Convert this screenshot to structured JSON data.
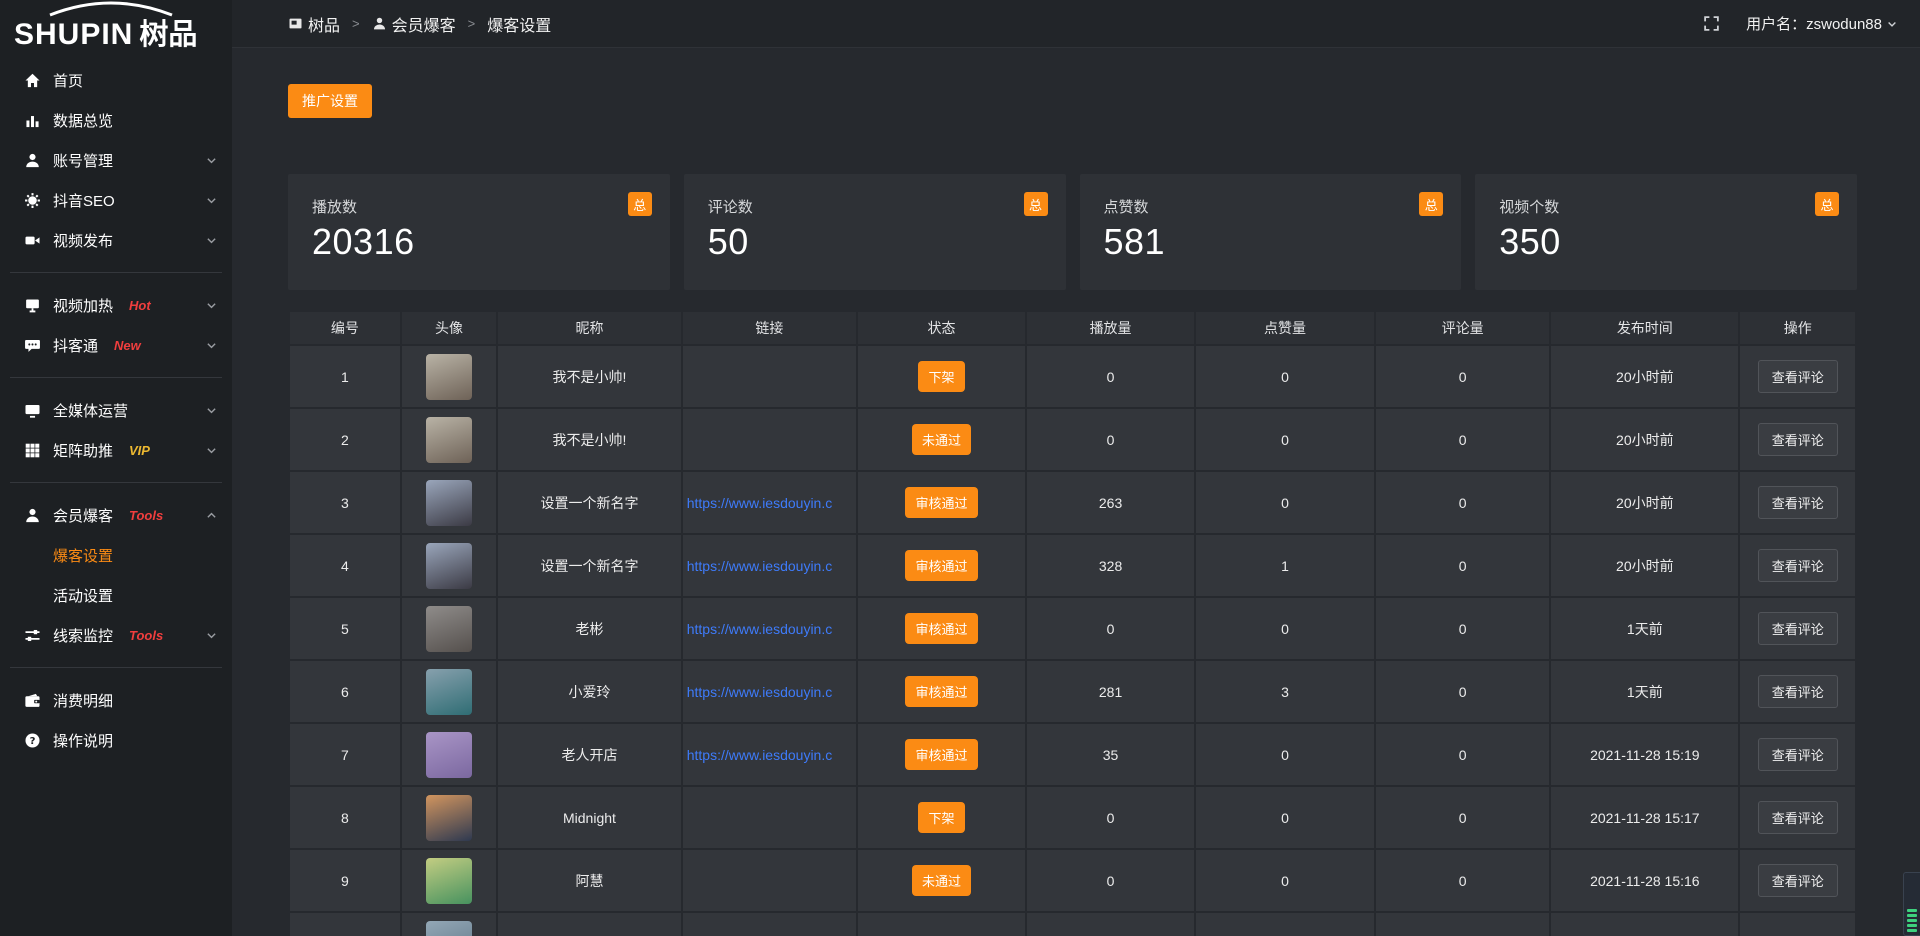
{
  "colors": {
    "accent": "#fb8b14",
    "link": "#3e7bfa",
    "badge_red": "#f03e3e",
    "badge_gold": "#edb931"
  },
  "logo": {
    "text_en": "SHUPIN",
    "text_cn": "树品"
  },
  "topbar": {
    "breadcrumb": [
      {
        "icon": "app-icon",
        "label": "树品"
      },
      {
        "icon": "user-icon",
        "label": "会员爆客"
      },
      {
        "icon": null,
        "label": "爆客设置"
      }
    ],
    "username_label": "用户名：zswodun88"
  },
  "sidebar": {
    "items": [
      {
        "icon": "home-icon",
        "label": "首页"
      },
      {
        "icon": "chart-icon",
        "label": "数据总览"
      },
      {
        "icon": "user-icon",
        "label": "账号管理",
        "chevron": "down"
      },
      {
        "icon": "gear-icon",
        "label": "抖音SEO",
        "chevron": "down"
      },
      {
        "icon": "video-icon",
        "label": "视频发布",
        "chevron": "down"
      },
      {
        "divider": true
      },
      {
        "icon": "screen-play-icon",
        "label": "视频加热",
        "badge": "Hot",
        "badge_color": "red",
        "chevron": "down"
      },
      {
        "icon": "chat-icon",
        "label": "抖客通",
        "badge": "New",
        "badge_color": "red",
        "chevron": "down"
      },
      {
        "divider": true
      },
      {
        "icon": "monitor-icon",
        "label": "全媒体运营",
        "chevron": "down"
      },
      {
        "icon": "grid-icon",
        "label": "矩阵助推",
        "badge": "VIP",
        "badge_color": "gold",
        "chevron": "down"
      },
      {
        "divider": true
      },
      {
        "icon": "member-icon",
        "label": "会员爆客",
        "badge": "Tools",
        "badge_color": "red",
        "chevron": "up"
      },
      {
        "sub": true,
        "label": "爆客设置",
        "active": true
      },
      {
        "sub": true,
        "label": "活动设置"
      },
      {
        "icon": "sliders-icon",
        "label": "线索监控",
        "badge": "Tools",
        "badge_color": "red",
        "chevron": "down"
      },
      {
        "divider": true
      },
      {
        "icon": "wallet-icon",
        "label": "消费明细"
      },
      {
        "icon": "question-icon",
        "label": "操作说明"
      }
    ]
  },
  "toolbar": {
    "promo_button": "推广设置"
  },
  "stats": {
    "badge": "总",
    "cards": [
      {
        "label": "播放数",
        "value": "20316"
      },
      {
        "label": "评论数",
        "value": "50"
      },
      {
        "label": "点赞数",
        "value": "581"
      },
      {
        "label": "视频个数",
        "value": "350"
      }
    ]
  },
  "table": {
    "columns": [
      "编号",
      "头像",
      "昵称",
      "链接",
      "状态",
      "播放量",
      "点赞量",
      "评论量",
      "发布时间",
      "操作"
    ],
    "action_label": "查看评论",
    "rows": [
      {
        "id": "1",
        "nickname": "我不是小帅!",
        "link": "",
        "status": "下架",
        "plays": "0",
        "likes": "0",
        "comments": "0",
        "time": "20小时前",
        "avatar": [
          "#b9b3a6",
          "#6e6257"
        ]
      },
      {
        "id": "2",
        "nickname": "我不是小帅!",
        "link": "",
        "status": "未通过",
        "plays": "0",
        "likes": "0",
        "comments": "0",
        "time": "20小时前",
        "avatar": [
          "#b9b3a6",
          "#6e6257"
        ]
      },
      {
        "id": "3",
        "nickname": "设置一个新名字",
        "link": "https://www.iesdouyin.c",
        "status": "审核通过",
        "plays": "263",
        "likes": "0",
        "comments": "0",
        "time": "20小时前",
        "avatar": [
          "#9aa6bb",
          "#3b3a44"
        ]
      },
      {
        "id": "4",
        "nickname": "设置一个新名字",
        "link": "https://www.iesdouyin.c",
        "status": "审核通过",
        "plays": "328",
        "likes": "1",
        "comments": "0",
        "time": "20小时前",
        "avatar": [
          "#9aa6bb",
          "#3b3a44"
        ]
      },
      {
        "id": "5",
        "nickname": "老彬",
        "link": "https://www.iesdouyin.c",
        "status": "审核通过",
        "plays": "0",
        "likes": "0",
        "comments": "0",
        "time": "1天前",
        "avatar": [
          "#8f8c8a",
          "#55504d"
        ]
      },
      {
        "id": "6",
        "nickname": "小爱玲",
        "link": "https://www.iesdouyin.c",
        "status": "审核通过",
        "plays": "281",
        "likes": "3",
        "comments": "0",
        "time": "1天前",
        "avatar": [
          "#87a0ad",
          "#2f6d74"
        ]
      },
      {
        "id": "7",
        "nickname": "老人开店",
        "link": "https://www.iesdouyin.c",
        "status": "审核通过",
        "plays": "35",
        "likes": "0",
        "comments": "0",
        "time": "2021-11-28 15:19",
        "avatar": [
          "#a995c6",
          "#7b68a0"
        ]
      },
      {
        "id": "8",
        "nickname": "Midnight",
        "link": "",
        "status": "下架",
        "plays": "0",
        "likes": "0",
        "comments": "0",
        "time": "2021-11-28 15:17",
        "avatar": [
          "#d2955f",
          "#2e3950"
        ]
      },
      {
        "id": "9",
        "nickname": "阿慧",
        "link": "",
        "status": "未通过",
        "plays": "0",
        "likes": "0",
        "comments": "0",
        "time": "2021-11-28 15:16",
        "avatar": [
          "#c3cd82",
          "#47925f"
        ]
      },
      {
        "id": "",
        "nickname": "",
        "link": "",
        "status": "",
        "plays": "",
        "likes": "",
        "comments": "",
        "time": "",
        "avatar": [
          "#93a7b6",
          "#5c7484"
        ],
        "show_action": false
      }
    ]
  }
}
